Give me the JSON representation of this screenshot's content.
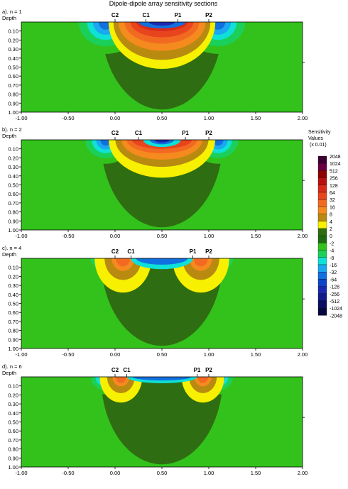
{
  "title": "Dipole-dipole array sensitivity sections",
  "depth_label": "Depth",
  "legend": {
    "title_lines": [
      "Sensitivity",
      "Values"
    ],
    "units": "(x 0.01)",
    "levels": [
      "2048",
      "1024",
      "512",
      "256",
      "128",
      "64",
      "32",
      "16",
      "8",
      "4",
      "2",
      "0",
      "-2",
      "-4",
      "-8",
      "-16",
      "-32",
      "-64",
      "-128",
      "-256",
      "-512",
      "-1024",
      "-2048"
    ],
    "colors": [
      "#3b0030",
      "#6a0040",
      "#8f0000",
      "#b81010",
      "#d82a1a",
      "#e8441e",
      "#f26a22",
      "#f58a1e",
      "#b88a10",
      "#f7f000",
      "#2f6d12",
      "#1e6a14",
      "#33c21c",
      "#1bd05a",
      "#0fe0d8",
      "#1aa8f0",
      "#1170e0",
      "#0f44c8",
      "#1a2ab0",
      "#141a8a",
      "#0c0c60",
      "#060640",
      "#000020"
    ]
  },
  "chart_data": [
    {
      "type": "heatmap",
      "label": "a). n = 1",
      "electrodes": [
        {
          "name": "C2",
          "x": 0.0
        },
        {
          "name": "C1",
          "x": 0.33
        },
        {
          "name": "P1",
          "x": 0.67
        },
        {
          "name": "P2",
          "x": 1.0
        }
      ],
      "xlim": [
        -1.0,
        2.0
      ],
      "ylim": [
        0.0,
        1.0
      ],
      "y_inverted": true,
      "xticks": [
        "-1.00",
        "-0.50",
        "0.00",
        "0.50",
        "1.00",
        "1.50",
        "2.00"
      ],
      "yticks": [
        "0.10",
        "0.20",
        "0.30",
        "0.40",
        "0.50",
        "0.60",
        "0.70",
        "0.80",
        "0.90",
        "1.00"
      ]
    },
    {
      "type": "heatmap",
      "label": "b). n = 2",
      "electrodes": [
        {
          "name": "C2",
          "x": 0.0
        },
        {
          "name": "C1",
          "x": 0.25
        },
        {
          "name": "P1",
          "x": 0.75
        },
        {
          "name": "P2",
          "x": 1.0
        }
      ],
      "xlim": [
        -1.0,
        2.0
      ],
      "ylim": [
        0.0,
        1.0
      ],
      "y_inverted": true,
      "xticks": [
        "-1.00",
        "-0.50",
        "0.00",
        "0.50",
        "1.00",
        "1.50",
        "2.00"
      ],
      "yticks": [
        "0.10",
        "0.20",
        "0.30",
        "0.40",
        "0.50",
        "0.60",
        "0.70",
        "0.80",
        "0.90",
        "1.00"
      ]
    },
    {
      "type": "heatmap",
      "label": "c). n = 4",
      "electrodes": [
        {
          "name": "C2",
          "x": 0.0
        },
        {
          "name": "C1",
          "x": 0.17
        },
        {
          "name": "P1",
          "x": 0.83
        },
        {
          "name": "P2",
          "x": 1.0
        }
      ],
      "xlim": [
        -1.0,
        2.0
      ],
      "ylim": [
        0.0,
        1.0
      ],
      "y_inverted": true,
      "xticks": [
        "-1.00",
        "-0.50",
        "0.00",
        "0.50",
        "1.00",
        "1.50",
        "2.00"
      ],
      "yticks": [
        "0.10",
        "0.20",
        "0.30",
        "0.40",
        "0.50",
        "0.60",
        "0.70",
        "0.80",
        "0.90",
        "1.00"
      ]
    },
    {
      "type": "heatmap",
      "label": "d). n = 6",
      "electrodes": [
        {
          "name": "C2",
          "x": 0.0
        },
        {
          "name": "C1",
          "x": 0.125
        },
        {
          "name": "P1",
          "x": 0.875
        },
        {
          "name": "P2",
          "x": 1.0
        }
      ],
      "xlim": [
        -1.0,
        2.0
      ],
      "ylim": [
        0.0,
        1.0
      ],
      "y_inverted": true,
      "xticks": [
        "-1.00",
        "-0.50",
        "0.00",
        "0.50",
        "1.00",
        "1.50",
        "2.00"
      ],
      "yticks": [
        "0.10",
        "0.20",
        "0.30",
        "0.40",
        "0.50",
        "0.60",
        "0.70",
        "0.80",
        "0.90",
        "1.00"
      ]
    }
  ]
}
